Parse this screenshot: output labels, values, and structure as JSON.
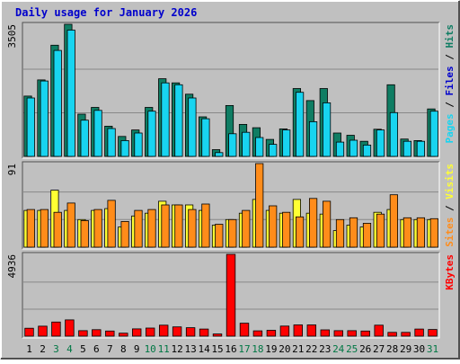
{
  "colors": {
    "background": "#c0c0c0",
    "plot_background": "#c0c0c0",
    "grid": "#888888",
    "title": "#0000cc",
    "axis_text": "#000000",
    "weekend_label": "#007744",
    "hits": "#0f7d63",
    "files": "#18d4f0",
    "pages": "#18d4f0",
    "visits": "#ffff33",
    "sites": "#ff8c1a",
    "kbytes": "#ff0000"
  },
  "chart_data": {
    "type": "bar",
    "title": "Daily usage for January 2026",
    "days": [
      "1",
      "2",
      "3",
      "4",
      "5",
      "6",
      "7",
      "8",
      "9",
      "10",
      "11",
      "12",
      "13",
      "14",
      "15",
      "16",
      "17",
      "18",
      "19",
      "20",
      "21",
      "22",
      "23",
      "24",
      "25",
      "26",
      "27",
      "28",
      "29",
      "30",
      "31"
    ],
    "weekend_days": [
      "3",
      "4",
      "10",
      "11",
      "17",
      "18",
      "24",
      "25",
      "31"
    ],
    "panels": [
      {
        "name": "hits",
        "ymax_label": "3505",
        "ymax": 3505,
        "axis_labels": [
          {
            "text": "Pages",
            "color": "#18d4f0"
          },
          {
            "text": " / ",
            "color": "#000000"
          },
          {
            "text": "Files",
            "color": "#0000cc"
          },
          {
            "text": " / ",
            "color": "#000000"
          },
          {
            "text": "Hits",
            "color": "#0f7d63"
          }
        ],
        "series": [
          {
            "name": "Hits",
            "color": "#0f7d63",
            "values": [
              1600,
              2030,
              2950,
              3505,
              1120,
              1300,
              800,
              530,
              700,
              1300,
              2060,
              1950,
              1650,
              1050,
              180,
              1350,
              850,
              760,
              450,
              730,
              1800,
              1480,
              1800,
              620,
              560,
              400,
              720,
              1900,
              460,
              420,
              1260
            ]
          },
          {
            "name": "Files",
            "color": "#18d4f0",
            "values": [
              1550,
              2000,
              2810,
              3350,
              960,
              1220,
              740,
              420,
              620,
              1200,
              1950,
              1900,
              1550,
              1000,
              100,
              600,
              640,
              500,
              320,
              700,
              1700,
              920,
              1420,
              380,
              430,
              300,
              700,
              1160,
              400,
              400,
              1200
            ]
          }
        ]
      },
      {
        "name": "visits",
        "ymax_label": "91",
        "ymax": 91,
        "axis_labels": [
          {
            "text": "Sites",
            "color": "#ff8c1a"
          },
          {
            "text": " / ",
            "color": "#000000"
          },
          {
            "text": "Visits",
            "color": "#ffff33"
          }
        ],
        "series": [
          {
            "name": "Visits",
            "color": "#ffff33",
            "values": [
              40,
              40,
              62,
              40,
              30,
              40,
              42,
              22,
              34,
              37,
              50,
              46,
              46,
              40,
              24,
              30,
              37,
              52,
              40,
              37,
              52,
              37,
              36,
              18,
              24,
              22,
              38,
              41,
              30,
              30,
              30
            ]
          },
          {
            "name": "Sites",
            "color": "#ff8c1a",
            "values": [
              41,
              41,
              38,
              48,
              29,
              41,
              51,
              28,
              40,
              41,
              46,
              46,
              41,
              47,
              25,
              30,
              40,
              91,
              45,
              38,
              33,
              53,
              50,
              30,
              32,
              26,
              36,
              57,
              32,
              32,
              31
            ]
          }
        ]
      },
      {
        "name": "kbytes",
        "ymax_label": "4936",
        "ymax": 4936,
        "axis_labels": [
          {
            "text": "KBytes",
            "color": "#ff0000"
          }
        ],
        "series": [
          {
            "name": "KBytes",
            "color": "#ff0000",
            "values": [
              480,
              600,
              850,
              980,
              330,
              390,
              310,
              180,
              440,
              490,
              660,
              560,
              510,
              430,
              130,
              4936,
              780,
              320,
              350,
              610,
              680,
              680,
              380,
              330,
              330,
              310,
              660,
              230,
              230,
              430,
              400
            ]
          }
        ]
      }
    ]
  }
}
